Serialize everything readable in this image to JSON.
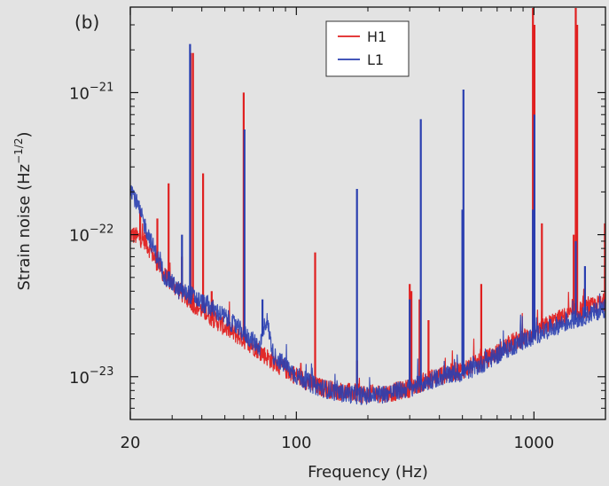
{
  "chart_data": {
    "type": "line",
    "panel_label": "(b)",
    "xlabel": "Frequency (Hz)",
    "ylabel_text": "Strain noise (Hz",
    "ylabel_sup": "−1/2",
    "ylabel_close": ")",
    "x_scale": "log",
    "y_scale": "log",
    "xlim": [
      20,
      2000
    ],
    "ylim": [
      5e-24,
      4e-21
    ],
    "grid": false,
    "legend_position": "top-center",
    "x_ticks": [
      {
        "value": 20,
        "label": "20"
      },
      {
        "value": 100,
        "label": "100"
      },
      {
        "value": 1000,
        "label": "1000"
      }
    ],
    "y_ticks": [
      {
        "value": 1e-23,
        "base": "10",
        "exp": "−23"
      },
      {
        "value": 1e-22,
        "base": "10",
        "exp": "−22"
      },
      {
        "value": 1e-21,
        "base": "10",
        "exp": "−21"
      }
    ],
    "series": [
      {
        "name": "H1",
        "color": "#e02020",
        "baseline": [
          [
            20,
            1e-22
          ],
          [
            23,
            9e-23
          ],
          [
            25,
            7e-23
          ],
          [
            28,
            5e-23
          ],
          [
            32,
            4e-23
          ],
          [
            36,
            3.3e-23
          ],
          [
            40,
            2.9e-23
          ],
          [
            50,
            2.2e-23
          ],
          [
            60,
            1.8e-23
          ],
          [
            70,
            1.5e-23
          ],
          [
            80,
            1.25e-23
          ],
          [
            100,
            1e-23
          ],
          [
            120,
            8.5e-24
          ],
          [
            150,
            7.8e-24
          ],
          [
            200,
            7.4e-24
          ],
          [
            250,
            7.6e-24
          ],
          [
            300,
            8.2e-24
          ],
          [
            350,
            9.2e-24
          ],
          [
            400,
            1e-23
          ],
          [
            500,
            1.1e-23
          ],
          [
            600,
            1.25e-23
          ],
          [
            700,
            1.45e-23
          ],
          [
            800,
            1.7e-23
          ],
          [
            1000,
            2e-23
          ],
          [
            1200,
            2.4e-23
          ],
          [
            1500,
            2.8e-23
          ],
          [
            2000,
            3.3e-23
          ]
        ],
        "peaks": [
          [
            22,
            1.5e-22
          ],
          [
            26,
            1.3e-22
          ],
          [
            29,
            2.3e-22
          ],
          [
            33,
            7e-23
          ],
          [
            35.9,
            1.9e-21
          ],
          [
            36.7,
            1.9e-21
          ],
          [
            40.5,
            2.7e-22
          ],
          [
            44,
            4e-23
          ],
          [
            60,
            1e-21
          ],
          [
            120,
            7.5e-23
          ],
          [
            180,
            1.3e-23
          ],
          [
            300,
            4.5e-23
          ],
          [
            305,
            4e-23
          ],
          [
            330,
            3.5e-23
          ],
          [
            360,
            2.5e-23
          ],
          [
            500,
            2.8e-23
          ],
          [
            600,
            4.5e-23
          ],
          [
            990,
            4e-21
          ],
          [
            1005,
            3e-21
          ],
          [
            1080,
            1.2e-22
          ],
          [
            1470,
            1e-22
          ],
          [
            1500,
            4e-21
          ],
          [
            1520,
            3e-21
          ],
          [
            1990,
            1.2e-22
          ]
        ]
      },
      {
        "name": "L1",
        "color": "#2a3fb0",
        "baseline": [
          [
            20,
            2.2e-22
          ],
          [
            22,
            1.4e-22
          ],
          [
            25,
            8e-23
          ],
          [
            28,
            5e-23
          ],
          [
            32,
            4e-23
          ],
          [
            36,
            3.7e-23
          ],
          [
            40,
            3.3e-23
          ],
          [
            50,
            2.6e-23
          ],
          [
            60,
            2e-23
          ],
          [
            70,
            1.6e-23
          ],
          [
            75,
            2.5e-23
          ],
          [
            80,
            1.4e-23
          ],
          [
            100,
            1e-23
          ],
          [
            120,
            8.5e-24
          ],
          [
            150,
            7.6e-24
          ],
          [
            200,
            7.2e-24
          ],
          [
            250,
            7.6e-24
          ],
          [
            300,
            8.2e-24
          ],
          [
            350,
            9e-24
          ],
          [
            400,
            9.8e-24
          ],
          [
            500,
            1.05e-23
          ],
          [
            600,
            1.2e-23
          ],
          [
            700,
            1.4e-23
          ],
          [
            800,
            1.6e-23
          ],
          [
            1000,
            1.9e-23
          ],
          [
            1200,
            2.2e-23
          ],
          [
            1500,
            2.5e-23
          ],
          [
            2000,
            3e-23
          ]
        ],
        "peaks": [
          [
            33,
            1e-22
          ],
          [
            35.7,
            2.2e-21
          ],
          [
            41,
            2.8e-23
          ],
          [
            60.5,
            5.5e-22
          ],
          [
            72,
            3.5e-23
          ],
          [
            180,
            2.1e-22
          ],
          [
            300,
            3.5e-23
          ],
          [
            334,
            6.5e-22
          ],
          [
            500,
            1.5e-22
          ],
          [
            505,
            1.05e-21
          ],
          [
            990,
            1.5e-22
          ],
          [
            1005,
            7e-22
          ],
          [
            1500,
            9e-23
          ],
          [
            1640,
            6e-23
          ],
          [
            1990,
            3.5e-23
          ]
        ]
      }
    ]
  }
}
